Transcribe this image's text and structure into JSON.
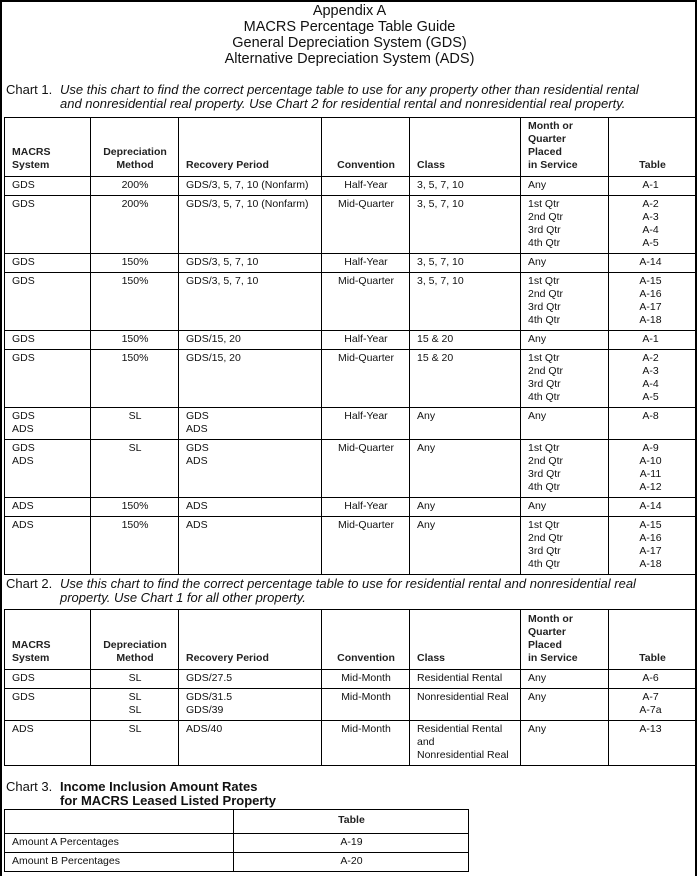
{
  "titles": [
    "Appendix A",
    "MACRS Percentage Table Guide",
    "General Depreciation System (GDS)",
    "Alternative Depreciation System (ADS)"
  ],
  "headers": [
    "MACRS\nSystem",
    "Depreciation\nMethod",
    "Recovery Period",
    "Convention",
    "Class",
    "Month or\nQuarter\nPlaced\nin Service",
    "Table"
  ],
  "chart1": {
    "label": "Chart 1.",
    "text_line1": "Use this chart to find the correct percentage table to use for any property other than residential rental",
    "text_line2": "and nonresidential real property. Use Chart 2 for residential rental and nonresidential real property.",
    "rows": [
      [
        "GDS",
        "200%",
        "GDS/3, 5, 7, 10 (Nonfarm)",
        "Half-Year",
        "3, 5, 7, 10",
        "Any",
        "A-1"
      ],
      [
        "GDS",
        "200%",
        "GDS/3, 5, 7, 10 (Nonfarm)",
        "Mid-Quarter",
        "3, 5, 7, 10",
        "1st Qtr\n2nd Qtr\n3rd Qtr\n4th Qtr",
        "A-2\nA-3\nA-4\nA-5"
      ],
      [
        "GDS",
        "150%",
        "GDS/3, 5, 7, 10",
        "Half-Year",
        "3, 5, 7, 10",
        "Any",
        "A-14"
      ],
      [
        "GDS",
        "150%",
        "GDS/3, 5, 7, 10",
        "Mid-Quarter",
        "3, 5, 7, 10",
        "1st Qtr\n2nd Qtr\n3rd Qtr\n4th Qtr",
        "A-15\nA-16\nA-17\nA-18"
      ],
      [
        "GDS",
        "150%",
        "GDS/15, 20",
        "Half-Year",
        "15 & 20",
        "Any",
        "A-1"
      ],
      [
        "GDS",
        "150%",
        "GDS/15, 20",
        "Mid-Quarter",
        "15 & 20",
        "1st Qtr\n2nd Qtr\n3rd Qtr\n4th Qtr",
        "A-2\nA-3\nA-4\nA-5"
      ],
      [
        "GDS\nADS",
        "SL",
        "GDS\nADS",
        "Half-Year",
        "Any",
        "Any",
        "A-8"
      ],
      [
        "GDS\nADS",
        "SL",
        "GDS\nADS",
        "Mid-Quarter",
        "Any",
        "1st Qtr\n2nd Qtr\n3rd Qtr\n4th Qtr",
        "A-9\nA-10\nA-11\nA-12"
      ],
      [
        "ADS",
        "150%",
        "ADS",
        "Half-Year",
        "Any",
        "Any",
        "A-14"
      ],
      [
        "ADS",
        "150%",
        "ADS",
        "Mid-Quarter",
        "Any",
        "1st Qtr\n2nd Qtr\n3rd Qtr\n4th Qtr",
        "A-15\nA-16\nA-17\nA-18"
      ]
    ]
  },
  "chart2": {
    "label": "Chart 2.",
    "text_line1": "Use this chart to find the correct percentage table to use for residential rental and nonresidential real",
    "text_line2": "property. Use Chart 1 for all other property.",
    "rows": [
      [
        "GDS",
        "SL",
        "GDS/27.5",
        "Mid-Month",
        "Residential Rental",
        "Any",
        "A-6"
      ],
      [
        "GDS",
        "SL\nSL",
        "GDS/31.5\nGDS/39",
        "Mid-Month",
        "Nonresidential Real",
        "Any",
        "A-7\nA-7a"
      ],
      [
        "ADS",
        "SL",
        "ADS/40",
        "Mid-Month",
        "Residential Rental\nand\nNonresidential Real",
        "Any",
        "A-13"
      ]
    ]
  },
  "chart3": {
    "label": "Chart 3.",
    "title_line1": "Income Inclusion Amount Rates",
    "title_line2": "for MACRS Leased Listed Property",
    "header": [
      "",
      "Table"
    ],
    "rows": [
      [
        "Amount A Percentages",
        "A-19"
      ],
      [
        "Amount B Percentages",
        "A-20"
      ]
    ]
  }
}
